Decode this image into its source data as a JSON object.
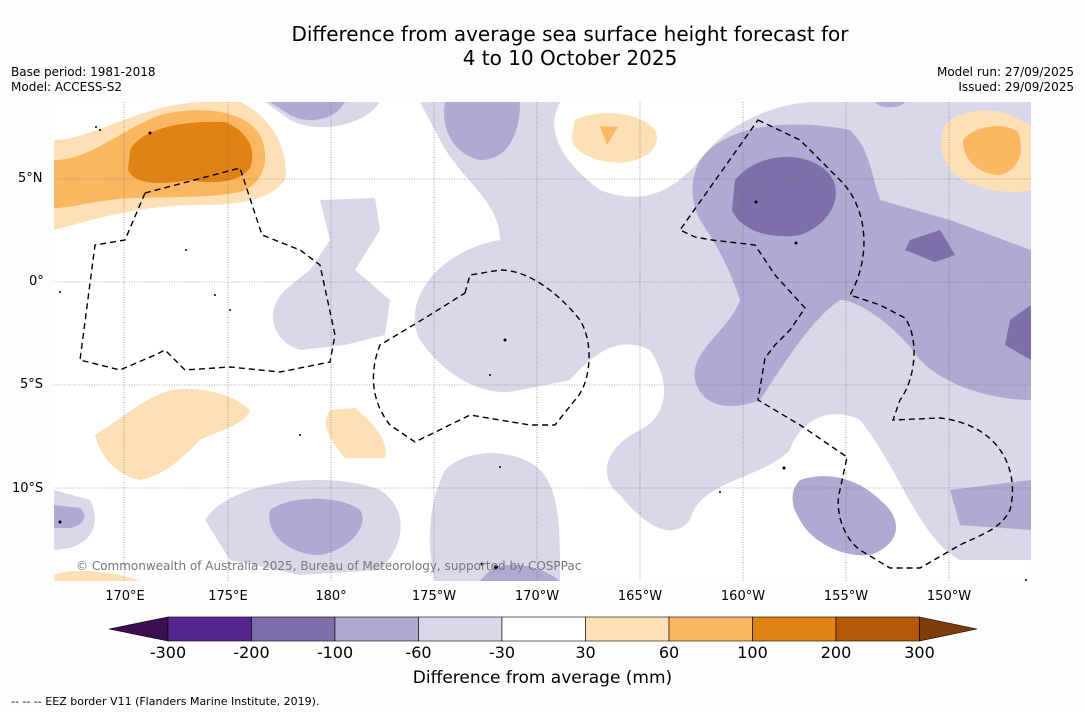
{
  "header": {
    "title_line1": "Difference from average sea surface height forecast for",
    "title_line2": "4 to 10 October 2025",
    "base_period": "Base period: 1981-2018",
    "model": "Model: ACCESS-S2",
    "model_run": "Model run: 27/09/2025",
    "issued": "Issued: 29/09/2025"
  },
  "map": {
    "lat_labels": [
      "5°N",
      "0°",
      "5°S",
      "10°S"
    ],
    "lon_labels": [
      "170°E",
      "175°E",
      "180°",
      "175°W",
      "170°W",
      "165°W",
      "160°W",
      "155°W",
      "150°W"
    ],
    "copyright": "© Commonwealth of Australia 2025, Bureau of Meteorology, supported by COSPPac",
    "eez_border_style": "dashed black line",
    "land_color": "#000000"
  },
  "colorbar": {
    "title": "Difference from average (mm)",
    "tick_labels": [
      "-300",
      "-200",
      "-100",
      "-60",
      "-30",
      "30",
      "60",
      "100",
      "200",
      "300"
    ],
    "colors": {
      "below_min": "#3b0f4f",
      "c1": "#54278f",
      "c2": "#7d6fa9",
      "c3": "#aeaad1",
      "c4": "#d8d8e9",
      "c5": "#ffffff",
      "c6": "#fde0b6",
      "c7": "#fbb662",
      "c8": "#e08214",
      "c9": "#b35806",
      "above_max": "#7f3b08"
    }
  },
  "footnote": "--  --  -- EEZ border V11 (Flanders Marine Institute, 2019)."
}
